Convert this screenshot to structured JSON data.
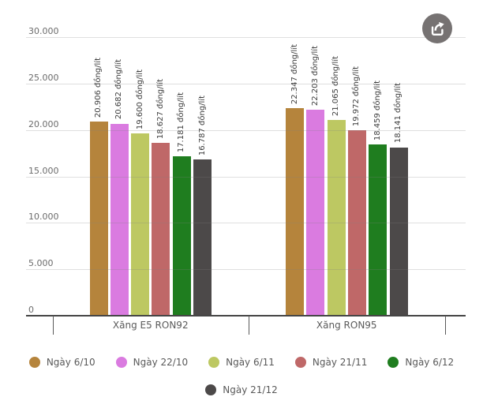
{
  "export_button": {
    "tooltip": "Export"
  },
  "chart_data": {
    "type": "bar",
    "title": "",
    "categories": [
      "Xăng E5 RON92",
      "Xăng RON95"
    ],
    "series": [
      {
        "name": "Ngày 6/10",
        "color": "#B5843C",
        "values": [
          20906,
          22347
        ],
        "value_labels": [
          "20.906 đồng/lít",
          "22.347 đồng/lít"
        ]
      },
      {
        "name": "Ngày 22/10",
        "color": "#DA7BE0",
        "values": [
          20682,
          22203
        ],
        "value_labels": [
          "20.682 đồng/lít",
          "22.203 đồng/lít"
        ]
      },
      {
        "name": "Ngày 6/11",
        "color": "#BDC862",
        "values": [
          19600,
          21065
        ],
        "value_labels": [
          "19.600 đồng/lít",
          "21.065 đồng/lít"
        ]
      },
      {
        "name": "Ngày 21/11",
        "color": "#BF6868",
        "values": [
          18627,
          19972
        ],
        "value_labels": [
          "18.627 đồng/lít",
          "19.972 đồng/lít"
        ]
      },
      {
        "name": "Ngày 6/12",
        "color": "#1F7D1F",
        "values": [
          17181,
          18459
        ],
        "value_labels": [
          "17.181 đồng/lít",
          "18.459 đồng/lít"
        ]
      },
      {
        "name": "Ngày 21/12",
        "color": "#4C4949",
        "values": [
          16787,
          18141
        ],
        "value_labels": [
          "16.787 đồng/lít",
          "18.141 đồng/lít"
        ]
      }
    ],
    "unit_suffix": "đồng/lít",
    "y_axis": {
      "min": 0,
      "max": 30000,
      "ticks": [
        {
          "label": "30.000",
          "value": 30000
        },
        {
          "label": "25.000",
          "value": 25000
        },
        {
          "label": "20.000",
          "value": 20000
        },
        {
          "label": "15.000",
          "value": 15000
        },
        {
          "label": "10.000",
          "value": 10000
        },
        {
          "label": "5.000",
          "value": 5000
        },
        {
          "label": "0",
          "value": 0
        }
      ]
    },
    "grid": true,
    "legend_position": "bottom"
  }
}
